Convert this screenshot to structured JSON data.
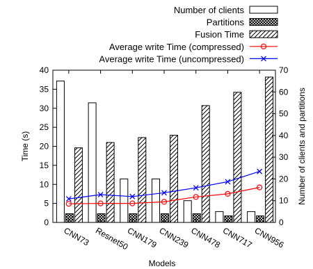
{
  "chart_data": {
    "type": "bar",
    "categories": [
      "CNN73",
      "Resnet50",
      "CNN179",
      "CNN239",
      "CNN478",
      "CNN717",
      "CNN956"
    ],
    "xlabel": "Models",
    "ylabel": "Time (s)",
    "y2label": "Number of clients and partitions",
    "ylim": [
      0,
      40
    ],
    "y2lim": [
      0,
      70
    ],
    "yticks": [
      0,
      5,
      10,
      15,
      20,
      25,
      30,
      35,
      40
    ],
    "y2ticks": [
      0,
      10,
      20,
      30,
      40,
      50,
      60,
      70
    ],
    "grid": false,
    "legend_position": "top-right",
    "series": [
      {
        "name": "Number of clients",
        "axis": "right",
        "kind": "bar",
        "pattern": "none",
        "color": "#000000",
        "values": [
          65,
          55,
          20,
          20,
          10,
          5,
          5
        ]
      },
      {
        "name": "Partitions",
        "axis": "right",
        "kind": "bar",
        "pattern": "crosshatch",
        "color": "#000000",
        "values": [
          4,
          4,
          4,
          4,
          4,
          3,
          3
        ]
      },
      {
        "name": "Fusion Time",
        "axis": "left",
        "kind": "bar",
        "pattern": "diagonal",
        "color": "#000000",
        "values": [
          19.6,
          21.0,
          22.3,
          22.9,
          30.7,
          34.2,
          38.2
        ]
      },
      {
        "name": "Average write Time (compressed)",
        "axis": "left",
        "kind": "line",
        "marker": "circle",
        "color": "#ff0000",
        "values": [
          4.9,
          5.0,
          5.0,
          5.4,
          6.7,
          7.5,
          9.2
        ]
      },
      {
        "name": "Average write Time (uncompressed)",
        "axis": "left",
        "kind": "line",
        "marker": "x",
        "color": "#0000ff",
        "values": [
          6.2,
          7.3,
          6.8,
          7.8,
          9.1,
          10.7,
          13.4
        ]
      }
    ]
  }
}
